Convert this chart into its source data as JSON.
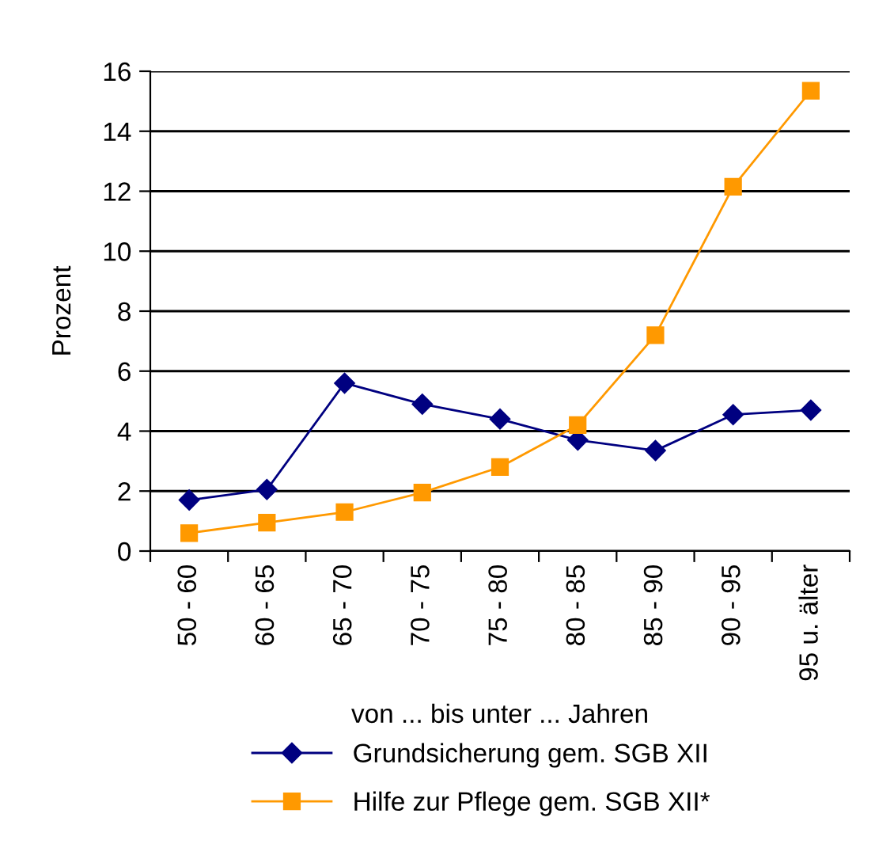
{
  "chart_data": {
    "type": "line",
    "xlabel": "von ... bis unter ... Jahren",
    "ylabel": "Prozent",
    "categories": [
      "50 - 60",
      "60 - 65",
      "65 - 70",
      "70 - 75",
      "75 - 80",
      "80 - 85",
      "85 - 90",
      "90 - 95",
      "95 u. älter"
    ],
    "series": [
      {
        "name": "Grundsicherung gem. SGB XII",
        "color": "#000080",
        "marker": "diamond",
        "values": [
          1.7,
          2.05,
          5.6,
          4.9,
          4.4,
          3.7,
          3.35,
          4.55,
          4.7
        ]
      },
      {
        "name": "Hilfe zur Pflege gem. SGB XII*",
        "color": "#ff9900",
        "marker": "square",
        "values": [
          0.6,
          0.95,
          1.3,
          1.95,
          2.8,
          4.2,
          7.2,
          12.15,
          15.35
        ]
      }
    ],
    "ylim": [
      0,
      16
    ],
    "yticks": [
      0,
      2,
      4,
      6,
      8,
      10,
      12,
      14,
      16
    ],
    "grid": "y",
    "legend": "bottom",
    "line_style": "solid"
  }
}
